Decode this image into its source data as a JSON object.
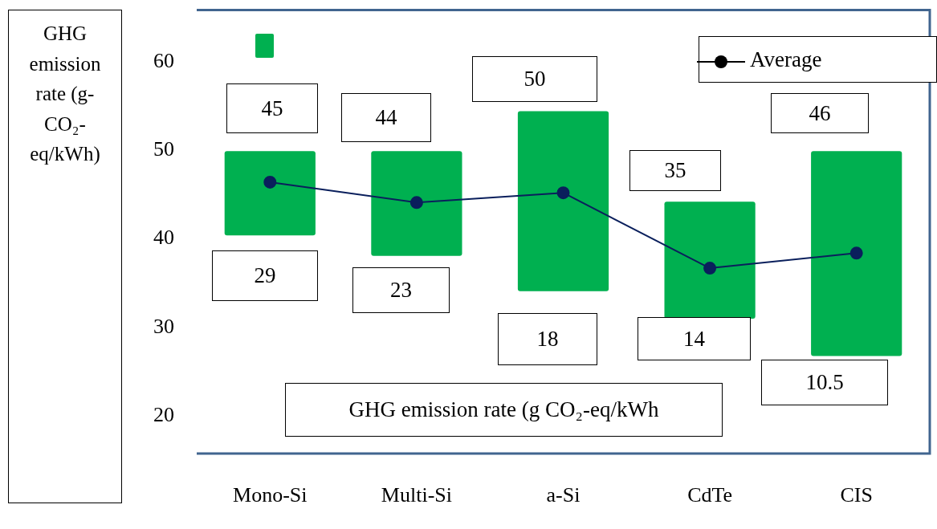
{
  "chart_data": {
    "type": "bar",
    "ylabel": "GHG emission rate (g-CO₂-eq/kWh)",
    "categories": [
      "Mono-Si",
      "Multi-Si",
      "a-Si",
      "CdTe",
      "CIS"
    ],
    "series": [
      {
        "color": "#00b050",
        "base": [
          40.4,
          38.1,
          34.1,
          31.0,
          26.8
        ],
        "values": [
          9.5,
          11.8,
          20.3,
          13.2,
          23.1
        ]
      },
      {
        "type": "line",
        "name": "Average",
        "color": "#0a1f5c",
        "marker": "circle",
        "line_style": "solid",
        "values": [
          46.4,
          44.1,
          45.2,
          36.7,
          38.4
        ]
      }
    ],
    "ylim": [
      15.8,
      65.8
    ],
    "yticks": [
      20,
      30,
      40,
      50,
      60
    ],
    "grid": false,
    "legend": "top right",
    "annotations": [
      "45",
      "29",
      "44",
      "23",
      "50",
      "18",
      "35",
      "14",
      "46",
      "10.5",
      "GHG emission rate (g CO₂-eq/kWh"
    ]
  }
}
